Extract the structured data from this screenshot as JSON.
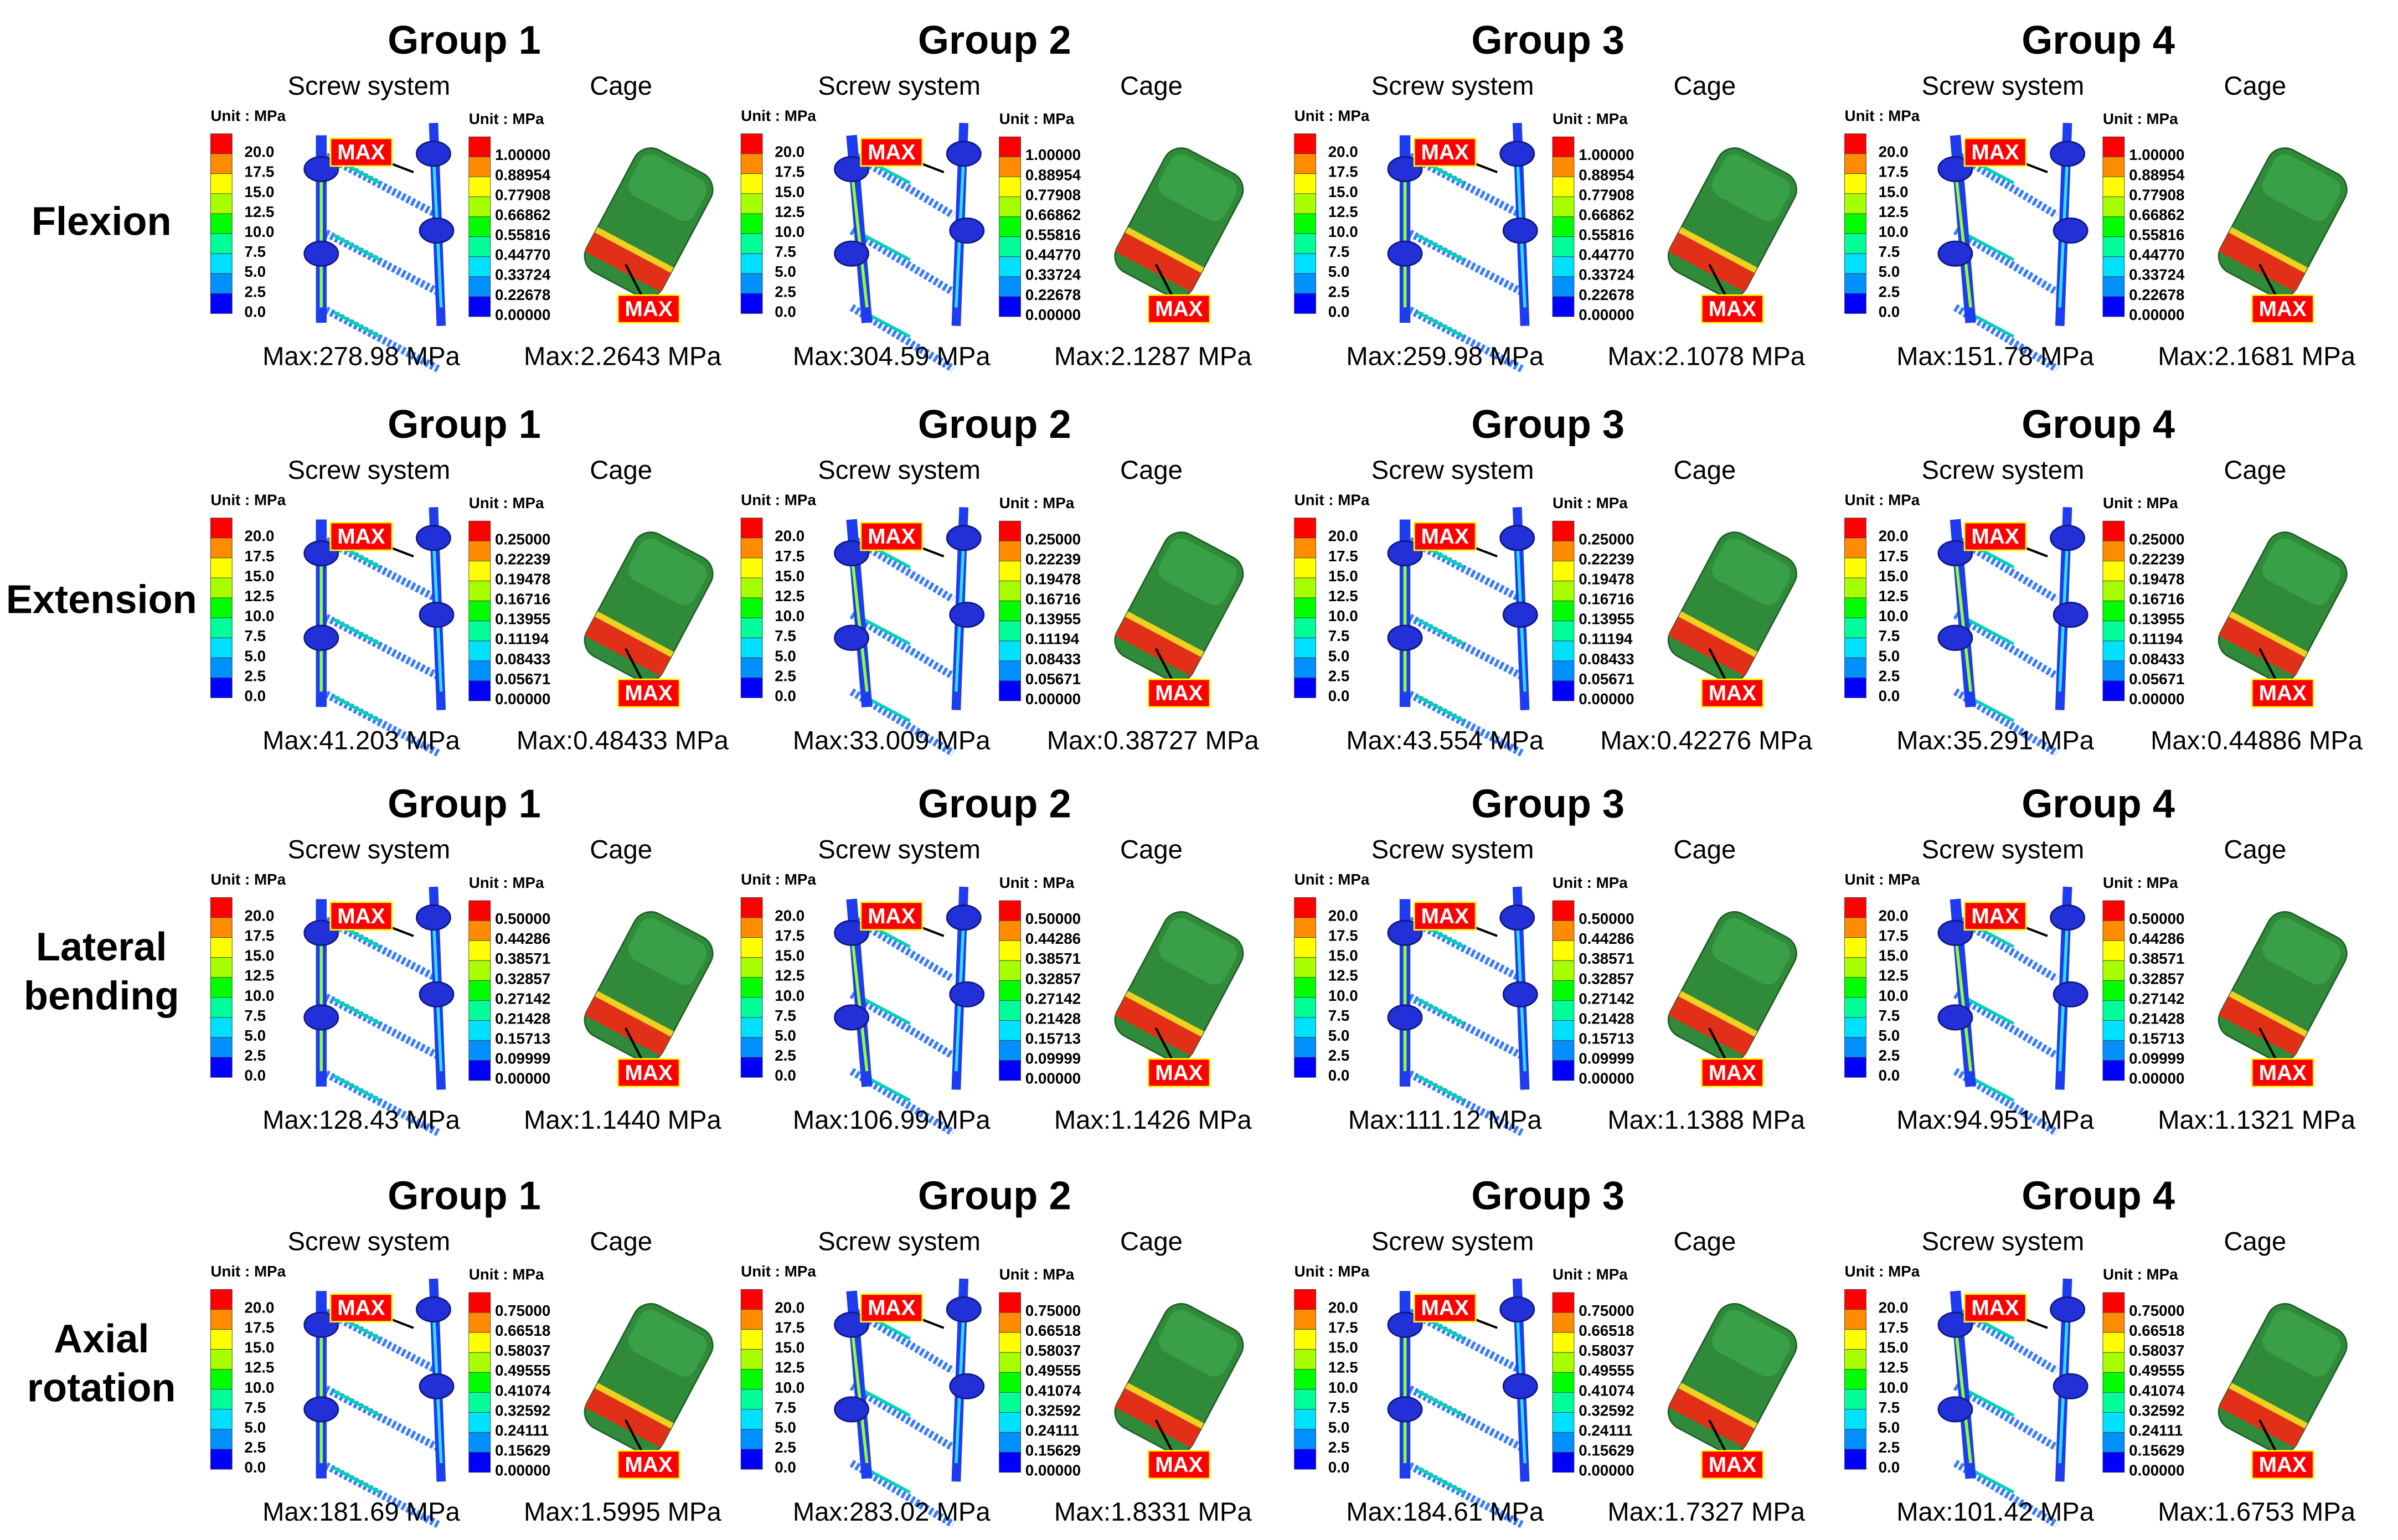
{
  "screw_label": "Screw system",
  "cage_label": "Cage",
  "unit": "Unit : MPa",
  "max_tag": "MAX",
  "screw_scale": [
    "20.0",
    "17.5",
    "15.0",
    "12.5",
    "10.0",
    "7.5",
    "5.0",
    "2.5",
    "0.0"
  ],
  "rows": [
    {
      "label": [
        "Flexion"
      ],
      "cage_scale": [
        "1.00000",
        "0.88954",
        "0.77908",
        "0.66862",
        "0.55816",
        "0.44770",
        "0.33724",
        "0.22678",
        "0.00000"
      ],
      "groups": [
        {
          "title": "Group 1",
          "screw_max": "Max:278.98 MPa",
          "cage_max": "Max:2.2643 MPa"
        },
        {
          "title": "Group 2",
          "screw_max": "Max:304.59 MPa",
          "cage_max": "Max:2.1287 MPa"
        },
        {
          "title": "Group 3",
          "screw_max": "Max:259.98 MPa",
          "cage_max": "Max:2.1078 MPa"
        },
        {
          "title": "Group 4",
          "screw_max": "Max:151.78 MPa",
          "cage_max": "Max:2.1681 MPa"
        }
      ]
    },
    {
      "label": [
        "Extension"
      ],
      "cage_scale": [
        "0.25000",
        "0.22239",
        "0.19478",
        "0.16716",
        "0.13955",
        "0.11194",
        "0.08433",
        "0.05671",
        "0.00000"
      ],
      "groups": [
        {
          "title": "Group 1",
          "screw_max": "Max:41.203 MPa",
          "cage_max": "Max:0.48433 MPa"
        },
        {
          "title": "Group 2",
          "screw_max": "Max:33.009 MPa",
          "cage_max": "Max:0.38727 MPa"
        },
        {
          "title": "Group 3",
          "screw_max": "Max:43.554 MPa",
          "cage_max": "Max:0.42276 MPa"
        },
        {
          "title": "Group 4",
          "screw_max": "Max:35.291 MPa",
          "cage_max": "Max:0.44886 MPa"
        }
      ]
    },
    {
      "label": [
        "Lateral",
        "bending"
      ],
      "cage_scale": [
        "0.50000",
        "0.44286",
        "0.38571",
        "0.32857",
        "0.27142",
        "0.21428",
        "0.15713",
        "0.09999",
        "0.00000"
      ],
      "groups": [
        {
          "title": "Group 1",
          "screw_max": "Max:128.43 MPa",
          "cage_max": "Max:1.1440 MPa"
        },
        {
          "title": "Group 2",
          "screw_max": "Max:106.99 MPa",
          "cage_max": "Max:1.1426 MPa"
        },
        {
          "title": "Group 3",
          "screw_max": "Max:111.12 MPa",
          "cage_max": "Max:1.1388 MPa"
        },
        {
          "title": "Group 4",
          "screw_max": "Max:94.951 MPa",
          "cage_max": "Max:1.1321 MPa"
        }
      ]
    },
    {
      "label": [
        "Axial",
        "rotation"
      ],
      "cage_scale": [
        "0.75000",
        "0.66518",
        "0.58037",
        "0.49555",
        "0.41074",
        "0.32592",
        "0.24111",
        "0.15629",
        "0.00000"
      ],
      "groups": [
        {
          "title": "Group 1",
          "screw_max": "Max:181.69 MPa",
          "cage_max": "Max:1.5995 MPa"
        },
        {
          "title": "Group 2",
          "screw_max": "Max:283.02 MPa",
          "cage_max": "Max:1.8331 MPa"
        },
        {
          "title": "Group 3",
          "screw_max": "Max:184.61 MPa",
          "cage_max": "Max:1.7327 MPa"
        },
        {
          "title": "Group 4",
          "screw_max": "Max:101.42 MPa",
          "cage_max": "Max:1.6753 MPa"
        }
      ]
    }
  ]
}
